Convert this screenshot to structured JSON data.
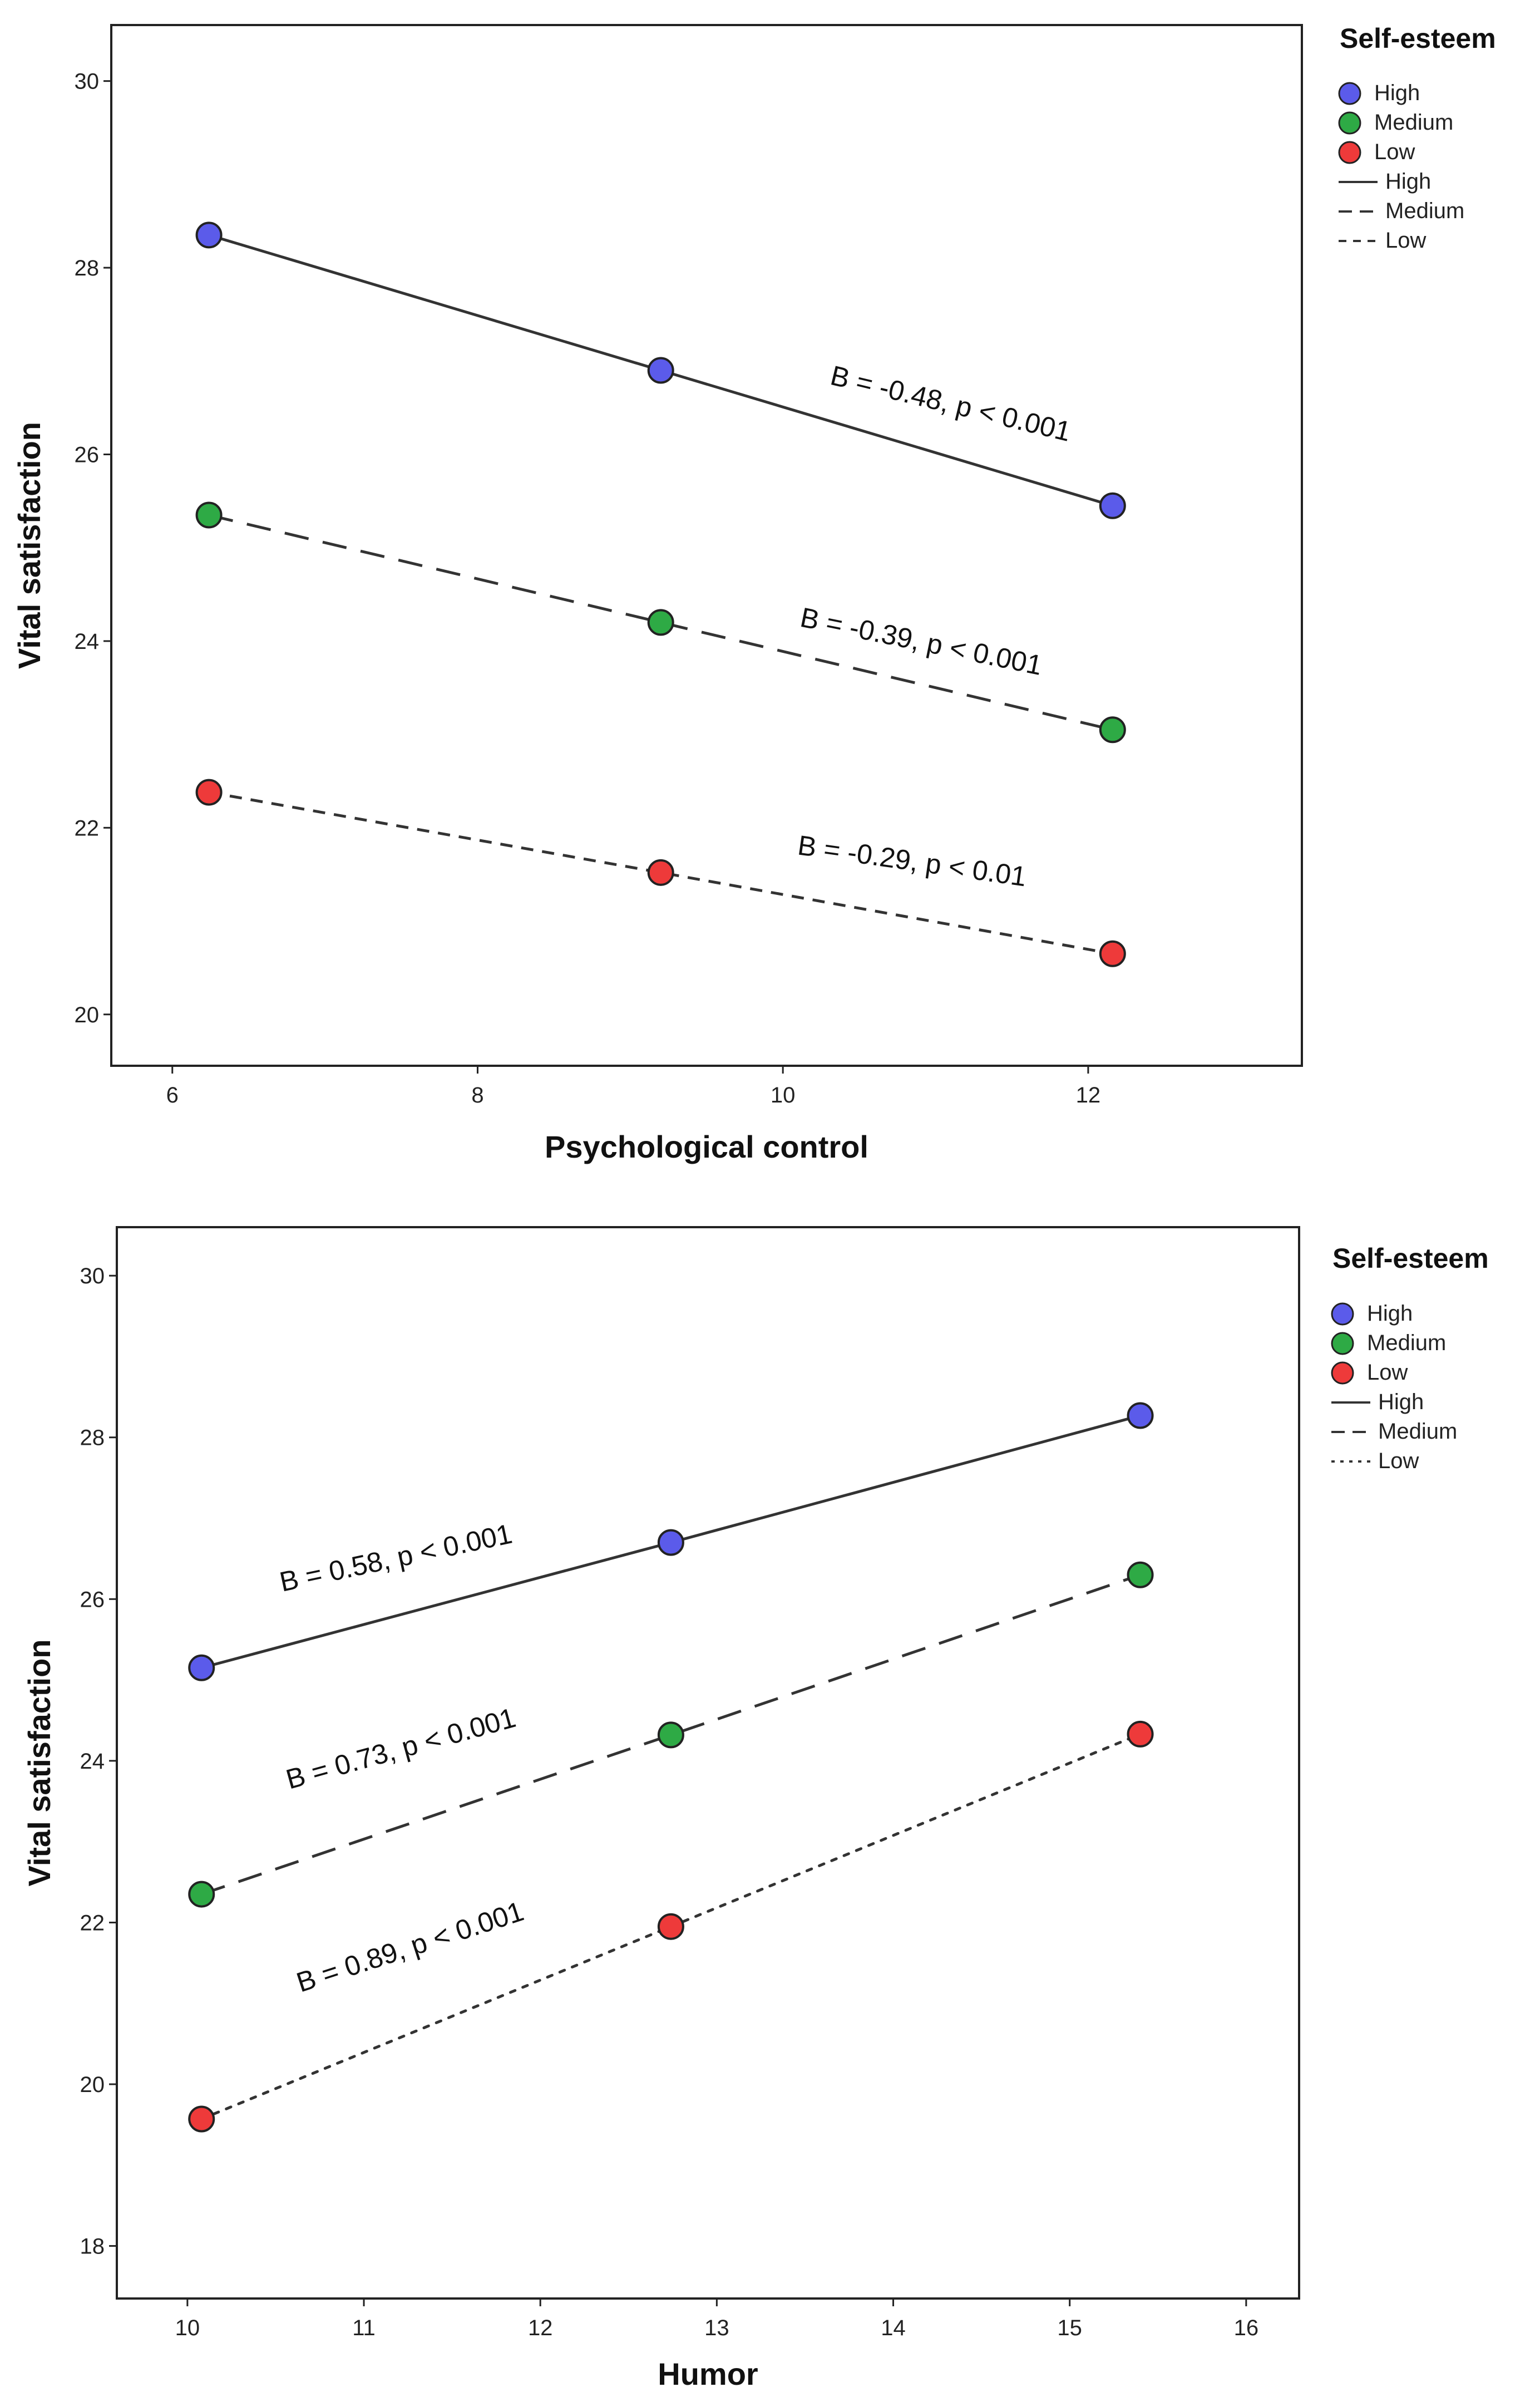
{
  "chart_data": [
    {
      "type": "line",
      "title": "",
      "xlabel": "Psychological control",
      "ylabel": "Vital satisfaction",
      "xlim": [
        5.6,
        13.4
      ],
      "ylim": [
        19.45,
        30.6
      ],
      "xticks": [
        6,
        8,
        10,
        12
      ],
      "yticks": [
        20,
        22,
        24,
        26,
        28,
        30
      ],
      "grid": false,
      "legend": {
        "title": "Self-esteem",
        "position": "right",
        "markers": [
          "High",
          "Medium",
          "Low"
        ],
        "lines": [
          "High",
          "Medium",
          "Low"
        ]
      },
      "x": [
        6.24,
        9.2,
        12.16
      ],
      "series": [
        {
          "name": "High",
          "values": [
            28.35,
            26.9,
            25.45
          ],
          "color": "#5b5bea",
          "dash": "solid",
          "annotation": "B = -0.48, p < 0.001"
        },
        {
          "name": "Medium",
          "values": [
            25.35,
            24.2,
            23.05
          ],
          "color": "#2eaa45",
          "dash": "long",
          "annotation": "B = -0.39, p < 0.001"
        },
        {
          "name": "Low",
          "values": [
            22.38,
            21.52,
            20.65
          ],
          "color": "#ee3a3a",
          "dash": "short",
          "annotation": "B = -0.29, p < 0.01"
        }
      ]
    },
    {
      "type": "line",
      "title": "",
      "xlabel": "Humor",
      "ylabel": "Vital satisfaction",
      "xlim": [
        9.6,
        16.3
      ],
      "ylim": [
        17.35,
        30.6
      ],
      "xticks": [
        10,
        11,
        12,
        13,
        14,
        15,
        16
      ],
      "yticks": [
        18,
        20,
        22,
        24,
        26,
        28,
        30
      ],
      "grid": false,
      "legend": {
        "title": "Self-esteem",
        "position": "right",
        "markers": [
          "High",
          "Medium",
          "Low"
        ],
        "lines": [
          "High",
          "Medium",
          "Low"
        ]
      },
      "x": [
        10.08,
        12.74,
        15.4
      ],
      "series": [
        {
          "name": "High",
          "values": [
            25.15,
            26.7,
            28.27
          ],
          "color": "#5b5bea",
          "dash": "solid",
          "annotation": "B = 0.58, p < 0.001"
        },
        {
          "name": "Medium",
          "values": [
            22.35,
            24.32,
            26.3
          ],
          "color": "#2eaa45",
          "dash": "long",
          "annotation": "B = 0.73, p < 0.001"
        },
        {
          "name": "Low",
          "values": [
            19.57,
            21.95,
            24.33
          ],
          "color": "#ee3a3a",
          "dash": "dot",
          "annotation": "B = 0.89, p < 0.001"
        }
      ]
    }
  ]
}
